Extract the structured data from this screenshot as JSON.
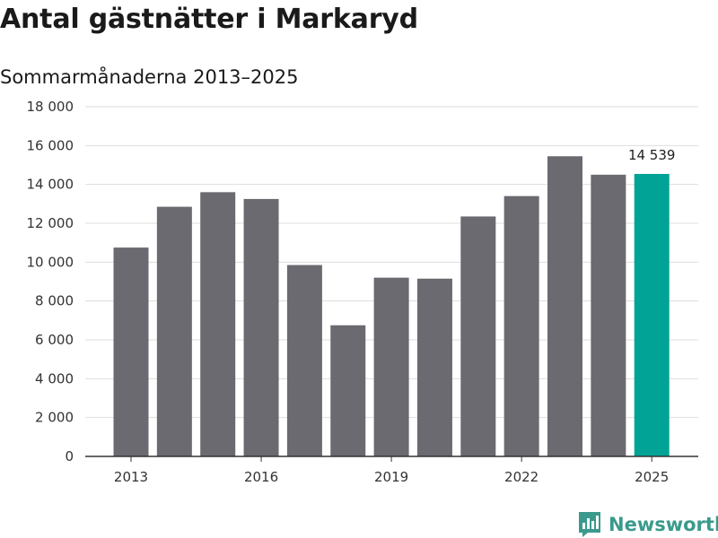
{
  "title": "Antal gästnätter i Markaryd",
  "subtitle": "Sommarmånaderna 2013–2025",
  "brand": {
    "name": "Newsworthy",
    "icon": "newsworthy-logo-icon"
  },
  "colors": {
    "bar": "#6b6a70",
    "highlight": "#00a396",
    "grid": "#dddddd",
    "axis": "#333333",
    "brand": "#3a9a8c"
  },
  "chart_data": {
    "type": "bar",
    "title": "Antal gästnätter i Markaryd",
    "subtitle": "Sommarmånaderna 2013–2025",
    "xlabel": "",
    "ylabel": "",
    "categories": [
      2013,
      2014,
      2015,
      2016,
      2017,
      2018,
      2019,
      2020,
      2021,
      2022,
      2023,
      2024,
      2025
    ],
    "values": [
      10750,
      12850,
      13600,
      13250,
      9850,
      6750,
      9200,
      9150,
      12350,
      13400,
      15450,
      14500,
      14539
    ],
    "highlight_index": 12,
    "data_labels": [
      {
        "index": 12,
        "text": "14 539"
      }
    ],
    "xticks": [
      2013,
      2016,
      2019,
      2022,
      2025
    ],
    "yticks": [
      "0",
      "2 000",
      "4 000",
      "6 000",
      "8 000",
      "10 000",
      "12 000",
      "14 000",
      "16 000",
      "18 000"
    ],
    "ylim": [
      0,
      18000
    ],
    "grid": true
  }
}
